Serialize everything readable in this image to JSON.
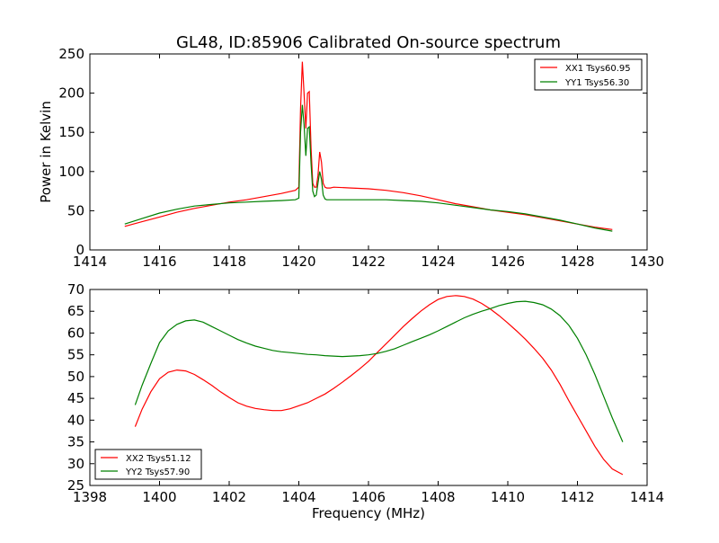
{
  "figure_title": "GL48, ID:85906 Calibrated On-source spectrum",
  "colors": {
    "series_red": "#ff0000",
    "series_green": "#008000",
    "axes": "#000000",
    "background": "#ffffff"
  },
  "chart_data": [
    {
      "type": "line",
      "title": "GL48, ID:85906 Calibrated On-source spectrum",
      "xlabel": "",
      "ylabel": "Power in Kelvin",
      "xlim": [
        1414,
        1430
      ],
      "ylim": [
        0,
        250
      ],
      "xticks": [
        1414,
        1416,
        1418,
        1420,
        1422,
        1424,
        1426,
        1428,
        1430
      ],
      "yticks": [
        0,
        50,
        100,
        150,
        200,
        250
      ],
      "legend_position": "top-right",
      "grid": false,
      "series": [
        {
          "name": "XX1 Tsys60.95",
          "color": "#ff0000",
          "x": [
            1415.0,
            1415.5,
            1416.0,
            1416.5,
            1417.0,
            1417.5,
            1418.0,
            1418.5,
            1419.0,
            1419.5,
            1419.9,
            1420.0,
            1420.05,
            1420.1,
            1420.15,
            1420.2,
            1420.25,
            1420.3,
            1420.35,
            1420.4,
            1420.45,
            1420.5,
            1420.55,
            1420.6,
            1420.65,
            1420.7,
            1420.75,
            1420.8,
            1420.9,
            1421.0,
            1421.5,
            1422.0,
            1422.5,
            1423.0,
            1423.5,
            1424.0,
            1424.5,
            1425.0,
            1425.5,
            1426.0,
            1426.5,
            1427.0,
            1427.5,
            1428.0,
            1428.5,
            1429.0
          ],
          "y": [
            30,
            36,
            42,
            48,
            53,
            57,
            61,
            64,
            68,
            72,
            76,
            80,
            180,
            240,
            200,
            155,
            200,
            202,
            130,
            85,
            80,
            80,
            95,
            125,
            112,
            85,
            80,
            79,
            79,
            80,
            79,
            78,
            76,
            73,
            69,
            64,
            59,
            55,
            51,
            48,
            45,
            41,
            37,
            33,
            29,
            26
          ]
        },
        {
          "name": "YY1 Tsys56.30",
          "color": "#008000",
          "x": [
            1415.0,
            1415.5,
            1416.0,
            1416.5,
            1417.0,
            1417.5,
            1418.0,
            1418.5,
            1419.0,
            1419.5,
            1419.9,
            1420.0,
            1420.05,
            1420.1,
            1420.15,
            1420.2,
            1420.25,
            1420.3,
            1420.35,
            1420.4,
            1420.45,
            1420.5,
            1420.55,
            1420.6,
            1420.65,
            1420.7,
            1420.75,
            1420.8,
            1420.9,
            1421.0,
            1421.5,
            1422.0,
            1422.5,
            1423.0,
            1423.5,
            1424.0,
            1424.5,
            1425.0,
            1425.5,
            1426.0,
            1426.5,
            1427.0,
            1427.5,
            1428.0,
            1428.5,
            1429.0
          ],
          "y": [
            33,
            40,
            47,
            52,
            56,
            58,
            60,
            61,
            62,
            63,
            64,
            66,
            150,
            185,
            160,
            120,
            155,
            157,
            110,
            75,
            68,
            70,
            85,
            100,
            90,
            70,
            65,
            64,
            64,
            64,
            64,
            64,
            64,
            63,
            62,
            60,
            57,
            54,
            51,
            49,
            46,
            42,
            38,
            33,
            28,
            24
          ]
        }
      ]
    },
    {
      "type": "line",
      "title": "",
      "xlabel": "Frequency (MHz)",
      "ylabel": "",
      "xlim": [
        1398,
        1414
      ],
      "ylim": [
        25,
        70
      ],
      "xticks": [
        1398,
        1400,
        1402,
        1404,
        1406,
        1408,
        1410,
        1412,
        1414
      ],
      "yticks": [
        25,
        30,
        35,
        40,
        45,
        50,
        55,
        60,
        65,
        70
      ],
      "legend_position": "bottom-left",
      "grid": false,
      "series": [
        {
          "name": "XX2 Tsys51.12",
          "color": "#ff0000",
          "x": [
            1399.3,
            1399.5,
            1399.75,
            1400.0,
            1400.25,
            1400.5,
            1400.75,
            1401.0,
            1401.25,
            1401.5,
            1401.75,
            1402.0,
            1402.25,
            1402.5,
            1402.75,
            1403.0,
            1403.25,
            1403.5,
            1403.75,
            1404.0,
            1404.25,
            1404.5,
            1404.75,
            1405.0,
            1405.25,
            1405.5,
            1405.75,
            1406.0,
            1406.25,
            1406.5,
            1406.75,
            1407.0,
            1407.25,
            1407.5,
            1407.75,
            1408.0,
            1408.25,
            1408.5,
            1408.75,
            1409.0,
            1409.25,
            1409.5,
            1409.75,
            1410.0,
            1410.25,
            1410.5,
            1410.75,
            1411.0,
            1411.25,
            1411.5,
            1411.75,
            1412.0,
            1412.25,
            1412.5,
            1412.75,
            1413.0,
            1413.3
          ],
          "y": [
            38.5,
            42.5,
            46.5,
            49.5,
            51,
            51.5,
            51.3,
            50.5,
            49.3,
            48,
            46.5,
            45.2,
            44,
            43.2,
            42.7,
            42.4,
            42.2,
            42.2,
            42.6,
            43.3,
            44,
            45,
            46,
            47.3,
            48.7,
            50.2,
            51.8,
            53.5,
            55.5,
            57.5,
            59.5,
            61.5,
            63.3,
            65,
            66.5,
            67.7,
            68.4,
            68.6,
            68.4,
            67.8,
            66.8,
            65.5,
            64,
            62.3,
            60.5,
            58.6,
            56.5,
            54.2,
            51.5,
            48.2,
            44.5,
            41,
            37.5,
            34,
            31,
            28.8,
            27.5
          ]
        },
        {
          "name": "YY2 Tsys57.90",
          "color": "#008000",
          "x": [
            1399.3,
            1399.5,
            1399.75,
            1400.0,
            1400.25,
            1400.5,
            1400.75,
            1401.0,
            1401.25,
            1401.5,
            1401.75,
            1402.0,
            1402.25,
            1402.5,
            1402.75,
            1403.0,
            1403.25,
            1403.5,
            1403.75,
            1404.0,
            1404.25,
            1404.5,
            1404.75,
            1405.0,
            1405.25,
            1405.5,
            1405.75,
            1406.0,
            1406.25,
            1406.5,
            1406.75,
            1407.0,
            1407.25,
            1407.5,
            1407.75,
            1408.0,
            1408.25,
            1408.5,
            1408.75,
            1409.0,
            1409.25,
            1409.5,
            1409.75,
            1410.0,
            1410.25,
            1410.5,
            1410.75,
            1411.0,
            1411.25,
            1411.5,
            1411.75,
            1412.0,
            1412.25,
            1412.5,
            1412.75,
            1413.0,
            1413.3
          ],
          "y": [
            43.5,
            48,
            53,
            57.8,
            60.5,
            62,
            62.8,
            63,
            62.5,
            61.5,
            60.5,
            59.5,
            58.5,
            57.7,
            57,
            56.5,
            56,
            55.7,
            55.5,
            55.3,
            55.1,
            55,
            54.8,
            54.7,
            54.6,
            54.7,
            54.8,
            55,
            55.3,
            55.8,
            56.4,
            57.2,
            58,
            58.8,
            59.6,
            60.5,
            61.5,
            62.5,
            63.5,
            64.3,
            65,
            65.6,
            66.3,
            66.8,
            67.2,
            67.3,
            67,
            66.5,
            65.5,
            64,
            61.8,
            58.8,
            55,
            50.5,
            45.5,
            40.5,
            35
          ]
        }
      ]
    }
  ]
}
